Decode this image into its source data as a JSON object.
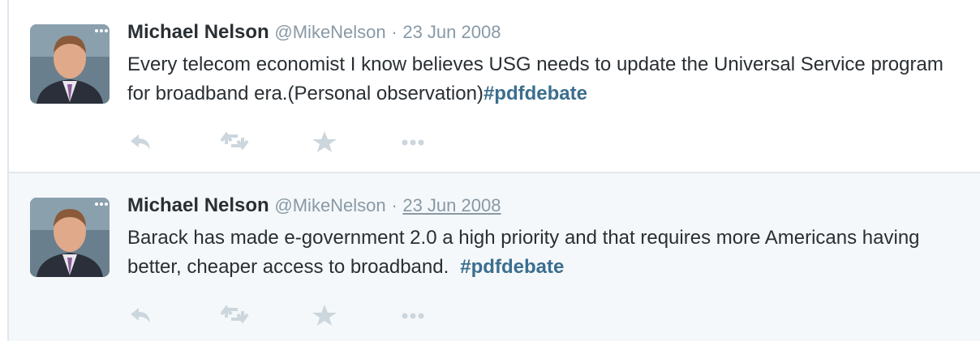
{
  "tweets": [
    {
      "name": "Michael Nelson",
      "handle": "@MikeNelson",
      "separator": "·",
      "date": "23 Jun 2008",
      "text": "Every telecom economist I know believes USG needs to update the Universal Service program for broadband era.(Personal observation)",
      "hashtag": "#pdfdebate"
    },
    {
      "name": "Michael Nelson",
      "handle": "@MikeNelson",
      "separator": "·",
      "date": "23 Jun 2008",
      "text": "Barack has made e-government 2.0 a high priority and that requires more Americans having better, cheaper access to broadband.",
      "hashtag": "#pdfdebate"
    }
  ]
}
